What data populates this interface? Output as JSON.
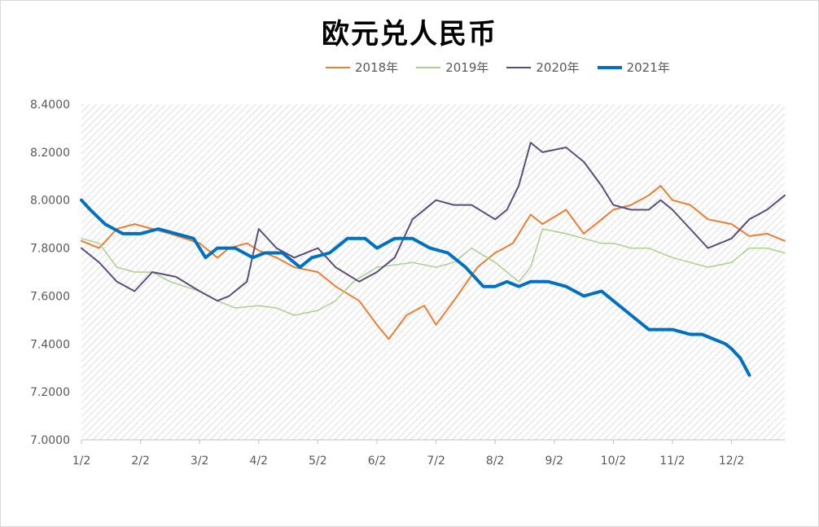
{
  "chart_data": {
    "type": "line",
    "title": "欧元兑人民币",
    "xlabel": "",
    "ylabel": "",
    "ylim": [
      7.0,
      8.4
    ],
    "yticks": [
      "7.0000",
      "7.2000",
      "7.4000",
      "7.6000",
      "7.8000",
      "8.0000",
      "8.2000",
      "8.4000"
    ],
    "x_ticks": [
      "1/2",
      "2/2",
      "3/2",
      "4/2",
      "5/2",
      "6/2",
      "7/2",
      "8/2",
      "9/2",
      "10/2",
      "11/2",
      "12/2"
    ],
    "legend_position": "top",
    "grid": false,
    "x_unit": "month index from 1/2 (0 = 1/2, 11 = 12/2)",
    "series": [
      {
        "name": "2018年",
        "color": "#ED7D31",
        "width": 2,
        "x": [
          0,
          0.3,
          0.6,
          0.9,
          1.2,
          1.5,
          2.0,
          2.3,
          2.5,
          2.8,
          3.0,
          3.3,
          3.6,
          4.0,
          4.3,
          4.7,
          5.0,
          5.2,
          5.5,
          5.8,
          6.0,
          6.3,
          6.7,
          7.0,
          7.3,
          7.6,
          7.8,
          8.2,
          8.5,
          8.8,
          9.0,
          9.3,
          9.6,
          9.8,
          10.0,
          10.3,
          10.6,
          11.0,
          11.3,
          11.6,
          11.9
        ],
        "y": [
          7.83,
          7.8,
          7.88,
          7.9,
          7.88,
          7.86,
          7.82,
          7.76,
          7.8,
          7.82,
          7.79,
          7.76,
          7.72,
          7.7,
          7.64,
          7.58,
          7.48,
          7.42,
          7.52,
          7.56,
          7.48,
          7.58,
          7.72,
          7.78,
          7.82,
          7.94,
          7.9,
          7.96,
          7.86,
          7.92,
          7.96,
          7.98,
          8.02,
          8.06,
          8.0,
          7.98,
          7.92,
          7.9,
          7.85,
          7.86,
          7.83
        ]
      },
      {
        "name": "2019年",
        "color": "#A9D18E",
        "width": 1.5,
        "x": [
          0,
          0.3,
          0.6,
          0.9,
          1.2,
          1.5,
          2.0,
          2.3,
          2.6,
          3.0,
          3.3,
          3.6,
          4.0,
          4.3,
          4.6,
          5.0,
          5.3,
          5.6,
          6.0,
          6.3,
          6.6,
          7.0,
          7.2,
          7.4,
          7.6,
          7.8,
          8.2,
          8.5,
          8.8,
          9.0,
          9.3,
          9.6,
          10.0,
          10.3,
          10.6,
          11.0,
          11.3,
          11.6,
          11.9
        ],
        "y": [
          7.84,
          7.82,
          7.72,
          7.7,
          7.7,
          7.66,
          7.62,
          7.58,
          7.55,
          7.56,
          7.55,
          7.52,
          7.54,
          7.58,
          7.66,
          7.72,
          7.73,
          7.74,
          7.72,
          7.74,
          7.8,
          7.74,
          7.7,
          7.66,
          7.72,
          7.88,
          7.86,
          7.84,
          7.82,
          7.82,
          7.8,
          7.8,
          7.76,
          7.74,
          7.72,
          7.74,
          7.8,
          7.8,
          7.78
        ]
      },
      {
        "name": "2020年",
        "color": "#5C4B7D",
        "width": 2,
        "x": [
          0,
          0.3,
          0.6,
          0.9,
          1.2,
          1.6,
          2.0,
          2.3,
          2.5,
          2.8,
          3.0,
          3.3,
          3.6,
          4.0,
          4.3,
          4.7,
          5.0,
          5.3,
          5.6,
          6.0,
          6.3,
          6.6,
          7.0,
          7.2,
          7.4,
          7.6,
          7.8,
          8.2,
          8.5,
          8.8,
          9.0,
          9.3,
          9.6,
          9.8,
          10.0,
          10.3,
          10.6,
          11.0,
          11.3,
          11.6,
          11.9
        ],
        "y": [
          7.8,
          7.74,
          7.66,
          7.62,
          7.7,
          7.68,
          7.62,
          7.58,
          7.6,
          7.66,
          7.88,
          7.8,
          7.76,
          7.8,
          7.72,
          7.66,
          7.7,
          7.76,
          7.92,
          8.0,
          7.98,
          7.98,
          7.92,
          7.96,
          8.06,
          8.24,
          8.2,
          8.22,
          8.16,
          8.06,
          7.98,
          7.96,
          7.96,
          8.0,
          7.96,
          7.88,
          7.8,
          7.84,
          7.92,
          7.96,
          8.02
        ]
      },
      {
        "name": "2021年",
        "color": "#0070C0",
        "width": 4,
        "x": [
          0,
          0.15,
          0.4,
          0.7,
          1.0,
          1.3,
          1.6,
          1.9,
          2.1,
          2.3,
          2.6,
          2.9,
          3.1,
          3.4,
          3.7,
          3.9,
          4.2,
          4.5,
          4.8,
          5.0,
          5.3,
          5.6,
          5.9,
          6.2,
          6.5,
          6.8,
          7.0,
          7.2,
          7.4,
          7.6,
          7.9,
          8.2,
          8.5,
          8.8,
          9.0,
          9.3,
          9.6,
          9.8,
          10.0,
          10.3,
          10.5,
          10.7,
          10.9,
          11.0,
          11.15,
          11.3
        ],
        "y": [
          8.0,
          7.96,
          7.9,
          7.86,
          7.86,
          7.88,
          7.86,
          7.84,
          7.76,
          7.8,
          7.8,
          7.76,
          7.78,
          7.78,
          7.72,
          7.76,
          7.78,
          7.84,
          7.84,
          7.8,
          7.84,
          7.84,
          7.8,
          7.78,
          7.72,
          7.64,
          7.64,
          7.66,
          7.64,
          7.66,
          7.66,
          7.64,
          7.6,
          7.62,
          7.58,
          7.52,
          7.46,
          7.46,
          7.46,
          7.44,
          7.44,
          7.42,
          7.4,
          7.38,
          7.34,
          7.27
        ]
      }
    ]
  }
}
